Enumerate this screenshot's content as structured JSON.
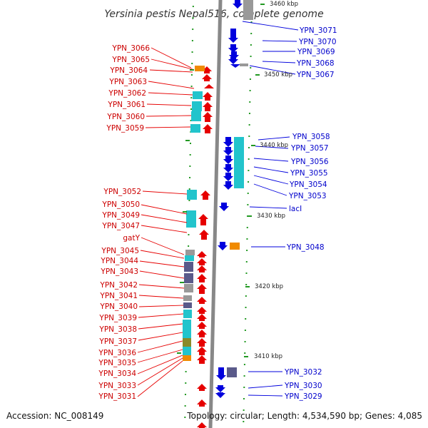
{
  "title": "Yersinia pestis Nepal516, complete genome",
  "footer": {
    "accession": "Accession: NC_008149",
    "topology": "Topology: circular; Length: 4,534,590 bp; Genes: 4,085"
  },
  "colors": {
    "forward_arrow": "#e60000",
    "reverse_arrow": "#0000dd",
    "backbone": "#888888",
    "tick": "#229922",
    "cyan_box": "#22c4cc",
    "orange_box": "#f08a00",
    "slate_box": "#5a5a8a",
    "gray_box": "#999999",
    "olive_box": "#8a8a2a"
  },
  "scale_labels": [
    {
      "text": "3460 kbp"
    },
    {
      "text": "3450 kbp"
    },
    {
      "text": "3440 kbp"
    },
    {
      "text": "3430 kbp"
    },
    {
      "text": "3420 kbp"
    },
    {
      "text": "3410 kbp"
    }
  ],
  "left_labels": [
    "YPN_3066",
    "YPN_3065",
    "YPN_3064",
    "YPN_3063",
    "YPN_3062",
    "YPN_3061",
    "YPN_3060",
    "YPN_3059",
    "YPN_3052",
    "YPN_3050",
    "YPN_3049",
    "YPN_3047",
    "gatY",
    "YPN_3045",
    "YPN_3044",
    "YPN_3043",
    "YPN_3042",
    "YPN_3041",
    "YPN_3040",
    "YPN_3039",
    "YPN_3038",
    "YPN_3037",
    "YPN_3036",
    "YPN_3035",
    "YPN_3034",
    "YPN_3033",
    "YPN_3031"
  ],
  "right_labels": [
    "YPN_3071",
    "YPN_3070",
    "YPN_3069",
    "YPN_3068",
    "YPN_3067",
    "YPN_3058",
    "YPN_3057",
    "YPN_3056",
    "YPN_3055",
    "YPN_3054",
    "YPN_3053",
    "lacI",
    "YPN_3048",
    "YPN_3032",
    "YPN_3030",
    "YPN_3029"
  ]
}
